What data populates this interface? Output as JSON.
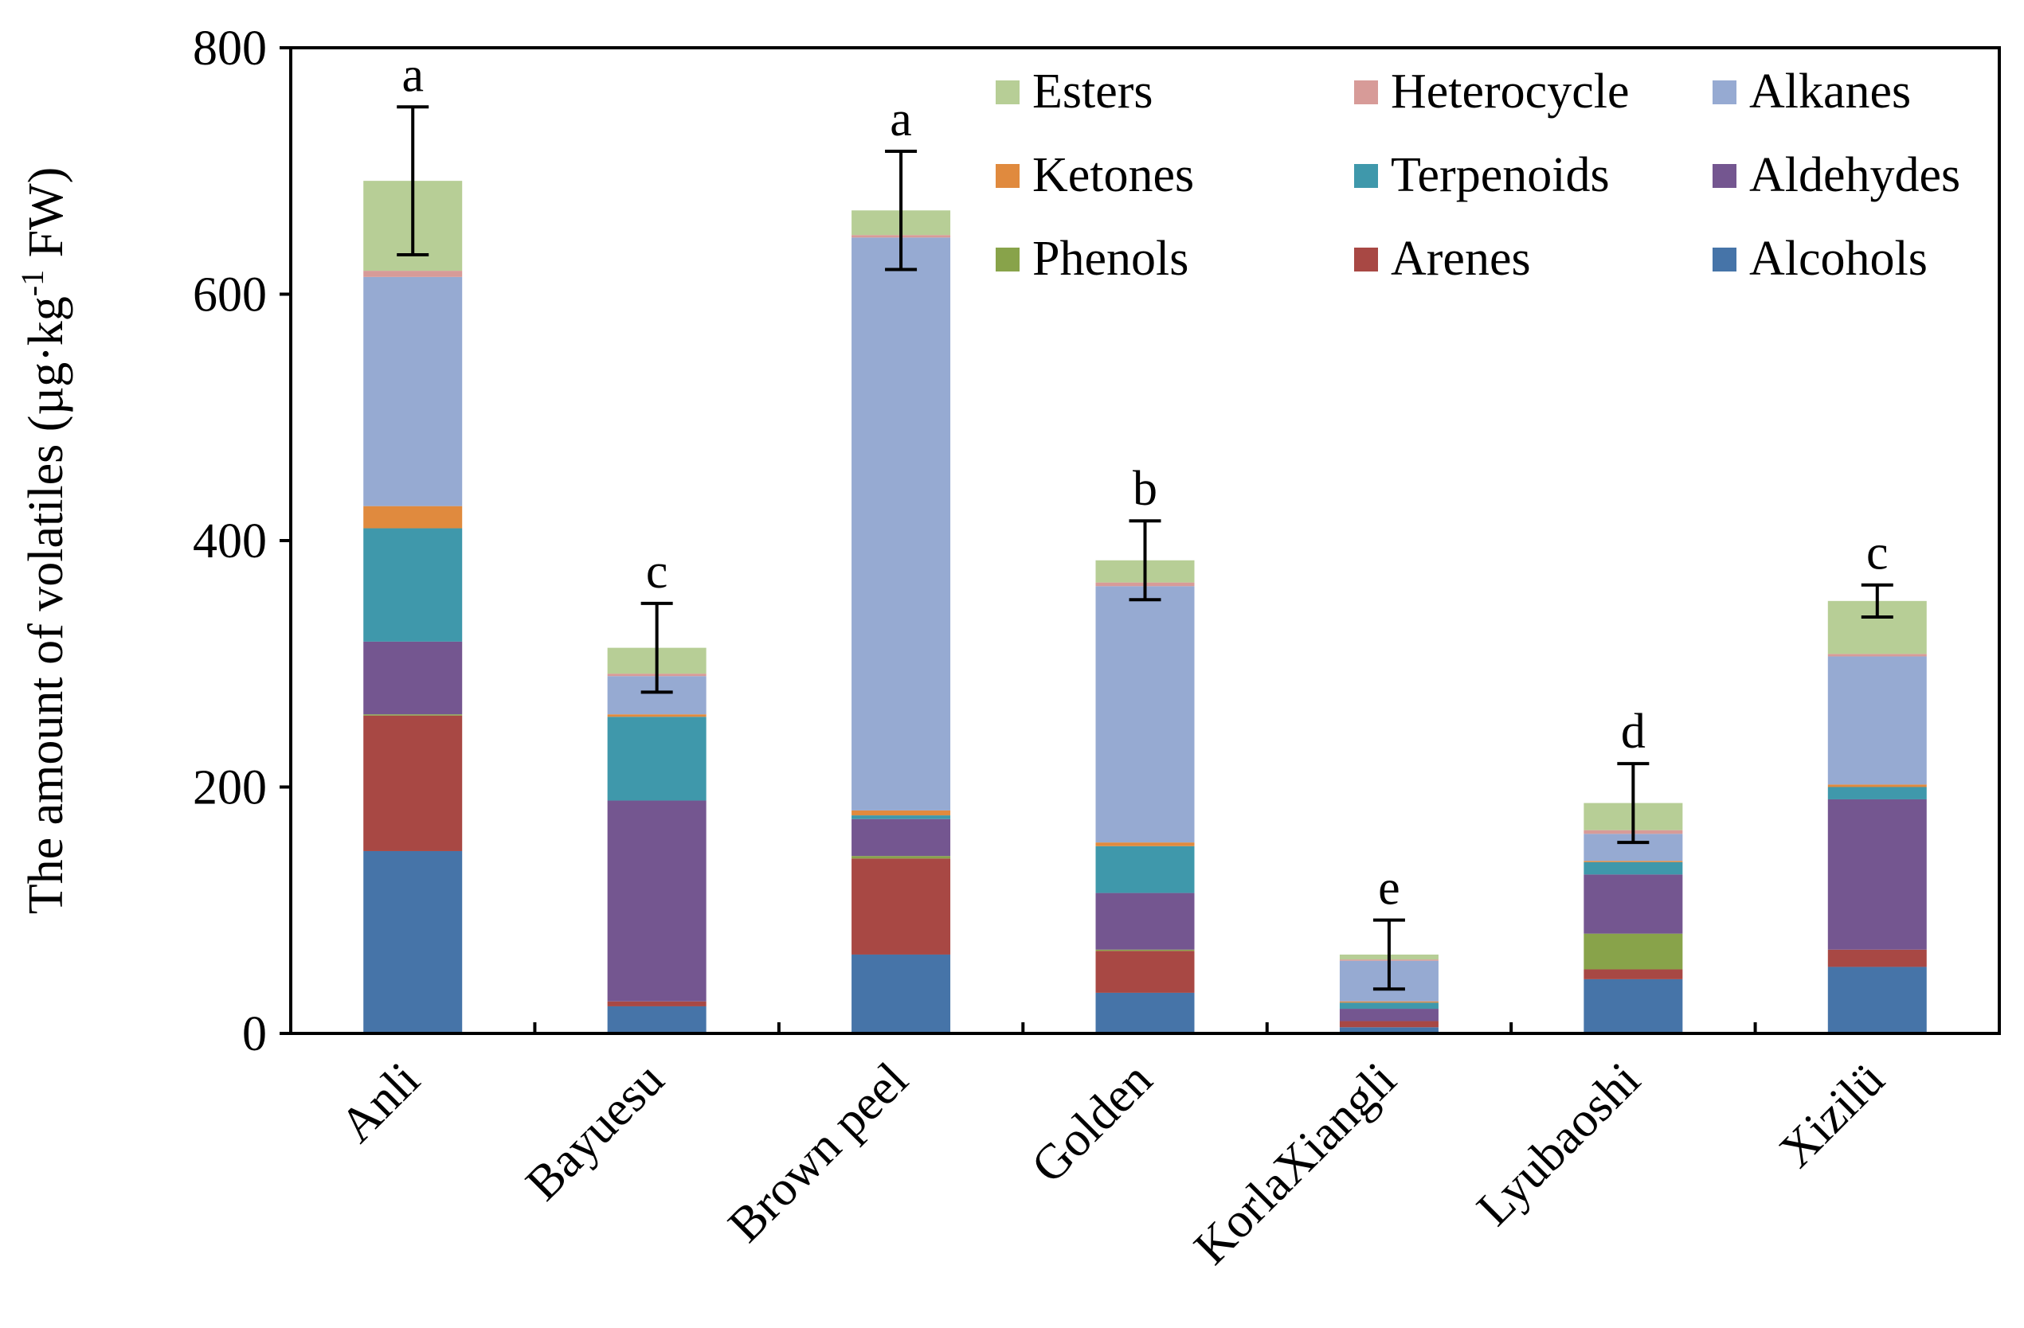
{
  "chart_data": {
    "type": "bar",
    "stacked": true,
    "title": "",
    "xlabel": "",
    "ylabel": "The amount of volatiles (µg·kg",
    "ylabel_sup": "-1",
    "ylabel_suffix": " FW)",
    "ylim": [
      0,
      800
    ],
    "yticks": [
      0,
      200,
      400,
      600,
      800
    ],
    "categories": [
      "Anli",
      "Bayuesu",
      "Brown peel",
      "Golden",
      "KorlaXiangli",
      "Lyubaoshi",
      "Xizilü"
    ],
    "series": [
      {
        "name": "Alcohols",
        "color": "#4674A8",
        "values": [
          148,
          22,
          64,
          33,
          5,
          44,
          54
        ]
      },
      {
        "name": "Arenes",
        "color": "#A84844",
        "values": [
          110,
          4,
          78,
          34,
          5,
          8,
          14
        ]
      },
      {
        "name": "Phenols",
        "color": "#88A34A",
        "values": [
          1,
          0,
          2,
          1,
          0,
          29,
          0
        ]
      },
      {
        "name": "Aldehydes",
        "color": "#745690",
        "values": [
          59,
          163,
          30,
          46,
          10,
          48,
          122
        ]
      },
      {
        "name": "Terpenoids",
        "color": "#3F98AB",
        "values": [
          92,
          68,
          3,
          38,
          5,
          10,
          10
        ]
      },
      {
        "name": "Ketones",
        "color": "#E08A3E",
        "values": [
          18,
          2,
          4,
          3,
          1,
          1,
          2
        ]
      },
      {
        "name": "Alkanes",
        "color": "#96AAD2",
        "values": [
          186,
          31,
          465,
          208,
          33,
          22,
          104
        ]
      },
      {
        "name": "Heterocycle",
        "color": "#D79B98",
        "values": [
          5,
          2,
          2,
          3,
          1,
          3,
          2
        ]
      },
      {
        "name": "Esters",
        "color": "#B7CE96",
        "values": [
          73,
          21,
          20,
          18,
          4,
          22,
          43
        ]
      }
    ],
    "totals": [
      692,
      313,
      668,
      384,
      64,
      187,
      351
    ],
    "errors": [
      60,
      36,
      48,
      32,
      28,
      32,
      13
    ],
    "significance": [
      "a",
      "c",
      "a",
      "b",
      "e",
      "d",
      "c"
    ],
    "legend_order": [
      "Esters",
      "Heterocycle",
      "Alkanes",
      "Ketones",
      "Terpenoids",
      "Aldehydes",
      "Phenols",
      "Arenes",
      "Alcohols"
    ],
    "legend_position": "top-right, inside plot"
  }
}
